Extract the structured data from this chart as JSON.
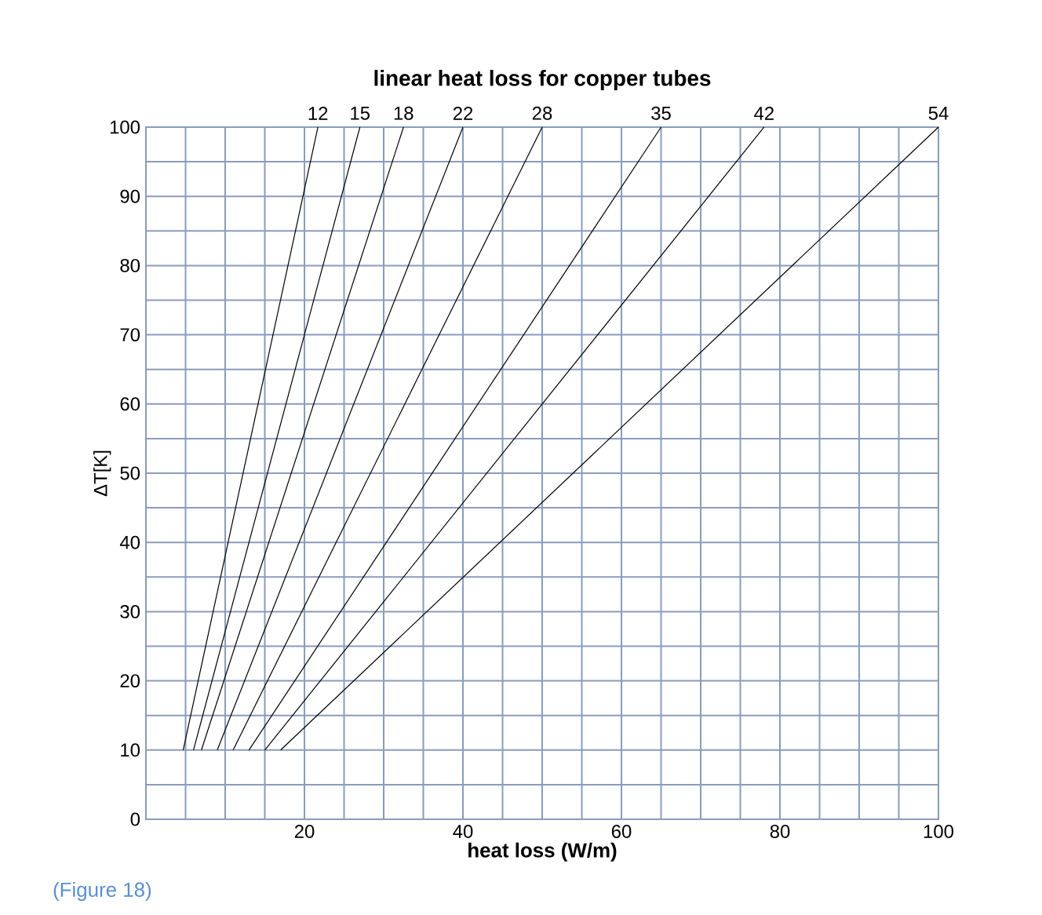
{
  "chart_data": {
    "type": "line",
    "title": "linear heat loss for copper tubes",
    "xlabel": "heat loss (W/m)",
    "ylabel": "ΔT[K]",
    "annotations": [
      "(Figure 18)"
    ],
    "xlim": [
      0,
      100
    ],
    "ylim": [
      0,
      100
    ],
    "xticks": [
      {
        "value": 0,
        "label": null
      },
      {
        "value": 5,
        "label": null
      },
      {
        "value": 10,
        "label": null
      },
      {
        "value": 15,
        "label": null
      },
      20,
      {
        "value": 25,
        "label": null
      },
      {
        "value": 30,
        "label": null
      },
      {
        "value": 35,
        "label": null
      },
      40,
      {
        "value": 45,
        "label": null
      },
      {
        "value": 50,
        "label": null
      },
      {
        "value": 55,
        "label": null
      },
      60,
      {
        "value": 65,
        "label": null
      },
      {
        "value": 70,
        "label": null
      },
      {
        "value": 75,
        "label": null
      },
      80,
      {
        "value": 85,
        "label": null
      },
      {
        "value": 90,
        "label": null
      },
      {
        "value": 95,
        "label": null
      },
      100
    ],
    "yticks": [
      0,
      {
        "value": 5,
        "label": null
      },
      10,
      {
        "value": 15,
        "label": null
      },
      20,
      {
        "value": 25,
        "label": null
      },
      30,
      {
        "value": 35,
        "label": null
      },
      40,
      {
        "value": 45,
        "label": null
      },
      50,
      {
        "value": 55,
        "label": null
      },
      60,
      {
        "value": 65,
        "label": null
      },
      70,
      {
        "value": 75,
        "label": null
      },
      80,
      {
        "value": 85,
        "label": null
      },
      90,
      {
        "value": 95,
        "label": null
      },
      100
    ],
    "grid": true,
    "series": [
      {
        "name": "12",
        "color": "#000000",
        "x": [
          4.7,
          21.7
        ],
        "values": [
          10,
          100
        ]
      },
      {
        "name": "15",
        "color": "#000000",
        "x": [
          6,
          27
        ],
        "values": [
          10,
          100
        ]
      },
      {
        "name": "18",
        "color": "#000000",
        "x": [
          7,
          32.5
        ],
        "values": [
          10,
          100
        ]
      },
      {
        "name": "22",
        "color": "#000000",
        "x": [
          9,
          40
        ],
        "values": [
          10,
          100
        ]
      },
      {
        "name": "28",
        "color": "#000000",
        "x": [
          11,
          50
        ],
        "values": [
          10,
          100
        ]
      },
      {
        "name": "35",
        "color": "#000000",
        "x": [
          13,
          65
        ],
        "values": [
          10,
          100
        ]
      },
      {
        "name": "42",
        "color": "#000000",
        "x": [
          15,
          78
        ],
        "values": [
          10,
          100
        ]
      },
      {
        "name": "54",
        "color": "#000000",
        "x": [
          17,
          100
        ],
        "values": [
          10,
          100
        ]
      }
    ]
  }
}
